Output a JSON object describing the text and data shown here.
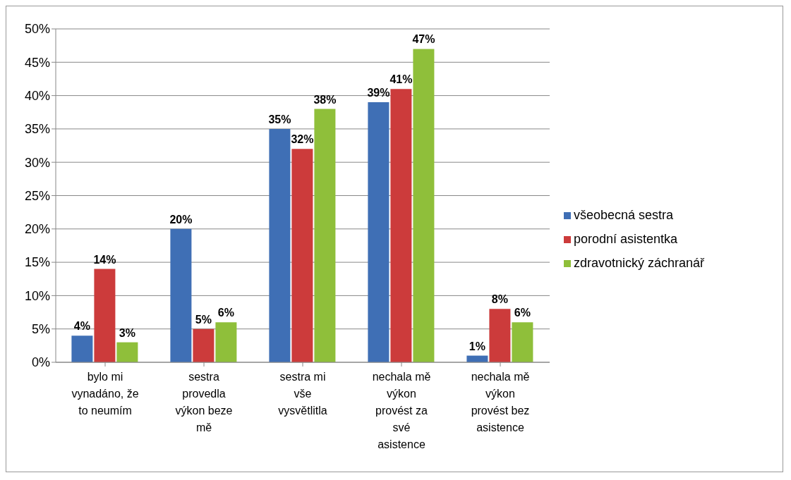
{
  "chart_data": {
    "type": "bar",
    "categories": [
      "bylo mi vynadáno, že to neumím",
      "sestra provedla výkon beze mě",
      "sestra mi vše vysvětlitla",
      "nechala mě výkon provést za své asistence",
      "nechala mě výkon provést bez asistence"
    ],
    "series": [
      {
        "name": "všeobecná sestra",
        "color": "#3f6fb5",
        "values": [
          4,
          20,
          35,
          39,
          1
        ],
        "value_labels": [
          "4%",
          "20%",
          "35%",
          "39%",
          "1%"
        ]
      },
      {
        "name": "porodní asistentka",
        "color": "#cc3b3b",
        "values": [
          14,
          5,
          32,
          41,
          8
        ],
        "value_labels": [
          "14%",
          "5%",
          "32%",
          "41%",
          "8%"
        ]
      },
      {
        "name": "zdravotnický záchranář",
        "color": "#8fbf3a",
        "values": [
          3,
          6,
          38,
          47,
          6
        ],
        "value_labels": [
          "3%",
          "6%",
          "38%",
          "47%",
          "6%"
        ]
      }
    ],
    "ylim": [
      0,
      50
    ],
    "yticks": [
      {
        "value": 0,
        "label": "0%"
      },
      {
        "value": 5,
        "label": "5%"
      },
      {
        "value": 10,
        "label": "10%"
      },
      {
        "value": 15,
        "label": "15%"
      },
      {
        "value": 20,
        "label": "20%"
      },
      {
        "value": 25,
        "label": "25%"
      },
      {
        "value": 30,
        "label": "30%"
      },
      {
        "value": 35,
        "label": "35%"
      },
      {
        "value": 40,
        "label": "40%"
      },
      {
        "value": 45,
        "label": "45%"
      },
      {
        "value": 50,
        "label": "50%"
      }
    ],
    "grid": "y",
    "legend": "right"
  }
}
